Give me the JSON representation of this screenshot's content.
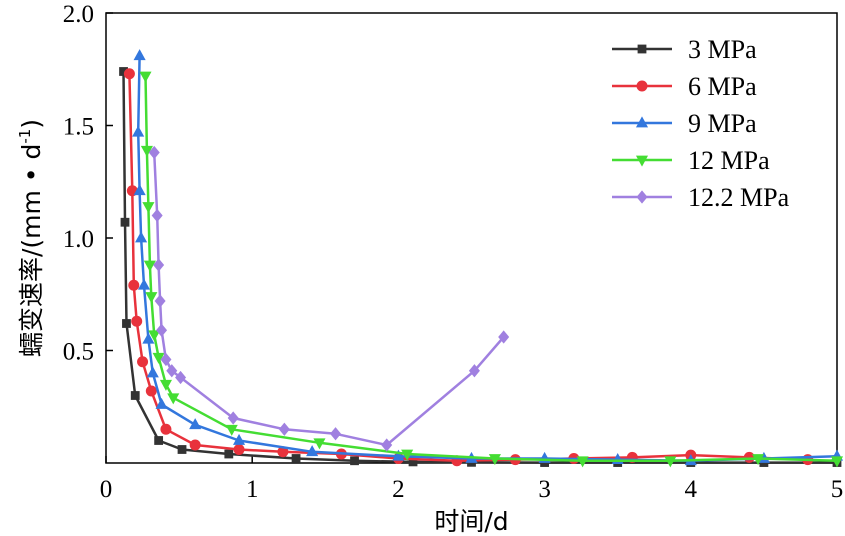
{
  "chart_data": {
    "type": "line",
    "xlabel": "时间/d",
    "ylabel": "蠕变速率/(mm • d",
    "ylabel_sup": "-1",
    "ylabel_tail": ")",
    "xlim": [
      0,
      5
    ],
    "ylim": [
      0,
      2.0
    ],
    "x_ticks": [
      "0",
      "1",
      "2",
      "3",
      "4",
      "5"
    ],
    "y_ticks": [
      "0.5",
      "1.0",
      "1.5",
      "2.0"
    ],
    "grid": false,
    "legend_position": "top-right",
    "series": [
      {
        "name": "3 MPa",
        "color": "#333333",
        "marker": "square",
        "x": [
          0.12,
          0.13,
          0.14,
          0.2,
          0.36,
          0.52,
          0.84,
          1.3,
          1.7,
          2.1,
          2.5,
          3.0,
          3.5,
          4.0,
          4.5,
          5.0
        ],
        "y": [
          1.74,
          1.07,
          0.62,
          0.3,
          0.1,
          0.06,
          0.04,
          0.02,
          0.01,
          0.005,
          0.003,
          0.002,
          0.002,
          0.002,
          0.002,
          0.002
        ]
      },
      {
        "name": "6 MPa",
        "color": "#e8323c",
        "marker": "circle",
        "x": [
          0.16,
          0.18,
          0.19,
          0.21,
          0.25,
          0.31,
          0.41,
          0.61,
          0.91,
          1.21,
          1.61,
          2.0,
          2.4,
          2.8,
          3.2,
          3.6,
          4.0,
          4.4,
          4.8
        ],
        "y": [
          1.73,
          1.21,
          0.79,
          0.63,
          0.45,
          0.32,
          0.15,
          0.08,
          0.06,
          0.05,
          0.04,
          0.02,
          0.01,
          0.015,
          0.02,
          0.025,
          0.035,
          0.025,
          0.015
        ]
      },
      {
        "name": "9 MPa",
        "color": "#3377dd",
        "marker": "triangle-up",
        "x": [
          0.23,
          0.22,
          0.23,
          0.24,
          0.26,
          0.29,
          0.32,
          0.38,
          0.61,
          0.91,
          1.41,
          2.0,
          2.5,
          3.0,
          3.5,
          4.0,
          4.5,
          5.0
        ],
        "y": [
          1.81,
          1.47,
          1.21,
          1.0,
          0.79,
          0.55,
          0.4,
          0.26,
          0.17,
          0.1,
          0.05,
          0.03,
          0.02,
          0.02,
          0.015,
          0.01,
          0.02,
          0.03
        ]
      },
      {
        "name": "12 MPa",
        "color": "#44dd33",
        "marker": "triangle-down",
        "x": [
          0.27,
          0.28,
          0.29,
          0.3,
          0.31,
          0.33,
          0.36,
          0.41,
          0.46,
          0.86,
          1.46,
          2.06,
          2.66,
          3.26,
          3.86,
          4.46,
          5.0
        ],
        "y": [
          1.72,
          1.39,
          1.14,
          0.88,
          0.74,
          0.57,
          0.47,
          0.35,
          0.29,
          0.15,
          0.09,
          0.04,
          0.02,
          0.01,
          0.01,
          0.02,
          0.01
        ]
      },
      {
        "name": "12.2 MPa",
        "color": "#a080e0",
        "marker": "diamond",
        "x": [
          0.33,
          0.35,
          0.36,
          0.37,
          0.38,
          0.41,
          0.45,
          0.51,
          0.87,
          1.22,
          1.57,
          1.92,
          2.52,
          2.72
        ],
        "y": [
          1.38,
          1.1,
          0.88,
          0.72,
          0.59,
          0.46,
          0.41,
          0.38,
          0.2,
          0.15,
          0.13,
          0.08,
          0.41,
          0.56
        ]
      }
    ]
  }
}
